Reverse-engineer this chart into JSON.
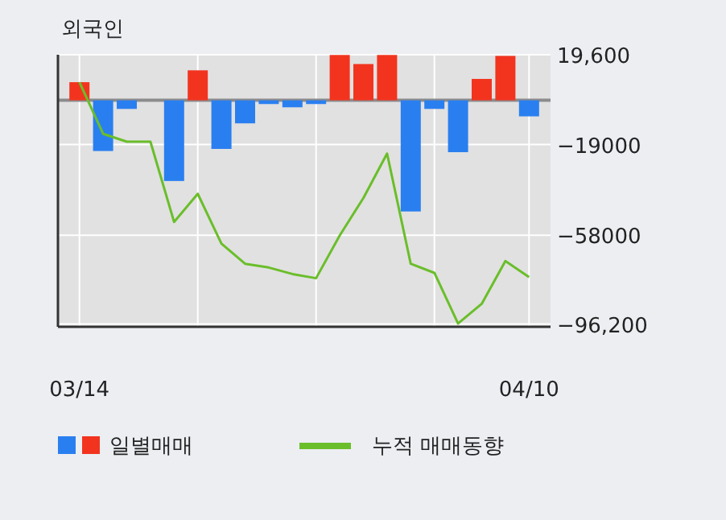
{
  "chart_data": {
    "type": "bar",
    "title": "외국인",
    "categories": [
      "03/14",
      null,
      null,
      null,
      null,
      null,
      null,
      null,
      null,
      null,
      null,
      null,
      null,
      null,
      null,
      null,
      null,
      null,
      null,
      "04/10"
    ],
    "series": [
      {
        "name": "일별매매",
        "colors": [
          "#f2341f",
          "#2a7ff0",
          "#2a7ff0",
          "#2a7ff0",
          "#2a7ff0",
          "#f2341f",
          "#2a7ff0",
          "#2a7ff0",
          "#2a7ff0",
          "#2a7ff0",
          "#2a7ff0",
          "#f2341f",
          "#f2341f",
          "#f2341f",
          "#2a7ff0",
          "#2a7ff0",
          "#2a7ff0",
          "#f2341f",
          "#f2341f",
          "#2a7ff0"
        ],
        "values": [
          7800,
          -21800,
          -3700,
          0,
          -34700,
          12900,
          -20900,
          -9900,
          -1600,
          -3000,
          -1600,
          19500,
          15600,
          19500,
          -47800,
          -3700,
          -22300,
          9200,
          19100,
          -6900
        ]
      },
      {
        "name": "누적 매매동향",
        "type": "line",
        "color": "#6abe2a",
        "values": [
          7800,
          -14400,
          -17800,
          -17800,
          -52300,
          -40200,
          -61600,
          -70300,
          -71900,
          -74700,
          -76500,
          -58100,
          -42000,
          -22900,
          -70300,
          -74200,
          -96000,
          -87500,
          -69100,
          -76000
        ]
      }
    ],
    "ylim": [
      -97400,
      19600
    ],
    "yticks": [
      {
        "value": 19600,
        "label": "19,600"
      },
      {
        "value": -19000,
        "label": "−19000"
      },
      {
        "value": -58000,
        "label": "−58000"
      },
      {
        "value": -96200,
        "label": "−96,200"
      }
    ],
    "ref_lines": [
      {
        "axis": "y",
        "value": 0,
        "color": "#8c8c8c"
      }
    ],
    "grid": true,
    "legend": "bottom left"
  }
}
